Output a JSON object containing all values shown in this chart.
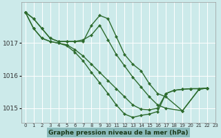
{
  "background_color": "#cceaea",
  "plot_bg": "#cceaea",
  "grid_color": "#ffffff",
  "line_color": "#2d6b2d",
  "xlabel": "Graphe pression niveau de la mer (hPa)",
  "xlim": [
    -0.5,
    23
  ],
  "ylim": [
    1014.55,
    1018.25
  ],
  "yticks": [
    1015,
    1016,
    1017
  ],
  "xtick_labels": [
    "0",
    "1",
    "2",
    "3",
    "4",
    "5",
    "6",
    "7",
    "8",
    "9",
    "10",
    "11",
    "12",
    "13",
    "14",
    "15",
    "16",
    "17",
    "18",
    "19",
    "20",
    "21",
    "22",
    "23"
  ],
  "series": [
    {
      "x": [
        0,
        1,
        2,
        3,
        4,
        5,
        6,
        7,
        8,
        9,
        10,
        11,
        12,
        13,
        14,
        15,
        16,
        17,
        19,
        21,
        22
      ],
      "y": [
        1017.95,
        1017.75,
        1017.45,
        1017.15,
        1017.05,
        1017.05,
        1017.05,
        1017.05,
        1017.55,
        1017.85,
        1017.75,
        1017.2,
        1016.65,
        1016.35,
        1016.15,
        1015.75,
        1015.45,
        1015.35,
        1014.92,
        1015.58,
        1015.62
      ]
    },
    {
      "x": [
        0,
        1,
        2,
        3,
        4,
        5,
        6,
        7,
        8,
        9,
        10,
        11,
        12,
        13,
        14,
        15,
        16,
        17,
        19,
        21,
        22
      ],
      "y": [
        1017.95,
        1017.75,
        1017.45,
        1017.15,
        1017.05,
        1017.05,
        1017.05,
        1017.1,
        1017.25,
        1017.55,
        1017.1,
        1016.65,
        1016.3,
        1015.95,
        1015.65,
        1015.35,
        1015.1,
        1015.0,
        1014.92,
        1015.58,
        1015.62
      ]
    },
    {
      "x": [
        0,
        1,
        2,
        3,
        4,
        5,
        6,
        7,
        8,
        9,
        10,
        11,
        12,
        13,
        14,
        15,
        16,
        17,
        18,
        19,
        20,
        21,
        22
      ],
      "y": [
        1017.95,
        1017.45,
        1017.15,
        1017.05,
        1017.0,
        1016.95,
        1016.8,
        1016.6,
        1016.35,
        1016.1,
        1015.85,
        1015.6,
        1015.35,
        1015.1,
        1014.97,
        1014.95,
        1015.0,
        1015.45,
        1015.55,
        1015.58,
        1015.6,
        1015.6,
        1015.62
      ]
    },
    {
      "x": [
        0,
        1,
        2,
        3,
        4,
        5,
        6,
        7,
        8,
        9,
        10,
        11,
        12,
        13,
        14,
        15,
        16,
        17,
        18,
        19,
        20,
        21,
        22
      ],
      "y": [
        1017.95,
        1017.45,
        1017.15,
        1017.05,
        1017.0,
        1016.92,
        1016.72,
        1016.45,
        1016.1,
        1015.78,
        1015.45,
        1015.1,
        1014.82,
        1014.72,
        1014.78,
        1014.82,
        1014.9,
        1015.45,
        1015.55,
        1015.58,
        1015.6,
        1015.6,
        1015.62
      ]
    }
  ]
}
